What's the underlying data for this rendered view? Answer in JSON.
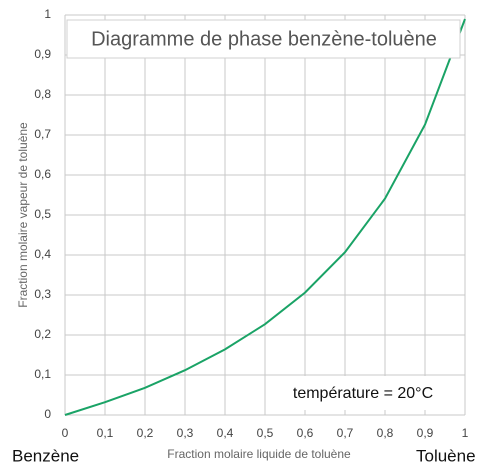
{
  "chart_data": {
    "type": "line",
    "title": "Diagramme de phase benzène-toluène",
    "x_label": "Fraction molaire liquide de toluène",
    "y_label": "Fraction molaire vapeur de toluène",
    "annotations": [
      "Benzène",
      "Toluène",
      "température = 20°C"
    ],
    "x": [
      0,
      0.1,
      0.2,
      0.3,
      0.4,
      0.5,
      0.6,
      0.7,
      0.8,
      0.9,
      1
    ],
    "values": [
      0,
      0.032,
      0.068,
      0.112,
      0.164,
      0.227,
      0.306,
      0.407,
      0.541,
      0.726,
      0.99
    ],
    "color": "#1aa366",
    "xlim": [
      0,
      1
    ],
    "ylim": [
      0,
      1
    ],
    "xticks": [
      0,
      {
        "value": 0.1,
        "label": "0,1"
      },
      {
        "value": 0.2,
        "label": "0,2"
      },
      {
        "value": 0.3,
        "label": "0,3"
      },
      {
        "value": 0.4,
        "label": "0,4"
      },
      {
        "value": 0.5,
        "label": "0,5"
      },
      {
        "value": 0.6,
        "label": "0,6"
      },
      {
        "value": 0.7,
        "label": "0,7"
      },
      {
        "value": 0.8,
        "label": "0,8"
      },
      {
        "value": 0.9,
        "label": "0,9"
      },
      1
    ],
    "yticks": [
      0,
      {
        "value": 0.1,
        "label": "0,1"
      },
      {
        "value": 0.2,
        "label": "0,2"
      },
      {
        "value": 0.3,
        "label": "0,3"
      },
      {
        "value": 0.4,
        "label": "0,4"
      },
      {
        "value": 0.5,
        "label": "0,5"
      },
      {
        "value": 0.6,
        "label": "0,6"
      },
      {
        "value": 0.7,
        "label": "0,7"
      },
      {
        "value": 0.8,
        "label": "0,8"
      },
      {
        "value": 0.9,
        "label": "0,9"
      },
      1
    ],
    "grid": true
  }
}
